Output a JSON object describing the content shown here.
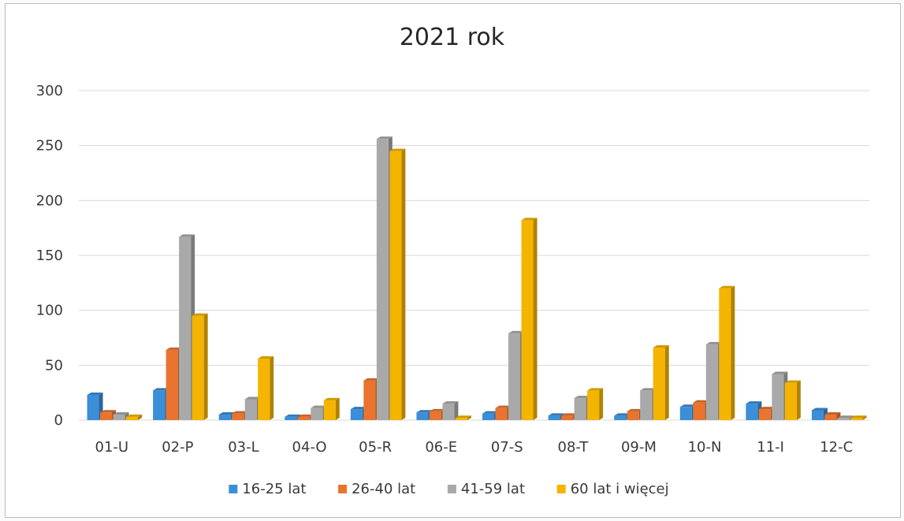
{
  "chart_data": {
    "type": "bar",
    "title": "2021 rok",
    "xlabel": "",
    "ylabel": "",
    "ylim": [
      0,
      300
    ],
    "yticks": [
      0,
      50,
      100,
      150,
      200,
      250,
      300
    ],
    "grid": true,
    "legend_position": "bottom",
    "categories": [
      "01-U",
      "02-P",
      "03-L",
      "04-O",
      "05-R",
      "06-E",
      "07-S",
      "08-T",
      "09-M",
      "10-N",
      "11-I",
      "12-C"
    ],
    "series": [
      {
        "name": "16-25 lat",
        "color": "#3b8ed8",
        "values": [
          23,
          27,
          5,
          3,
          10,
          7,
          6,
          4,
          4,
          12,
          15,
          9
        ]
      },
      {
        "name": "26-40 lat",
        "color": "#e8742f",
        "values": [
          7,
          64,
          6,
          3,
          36,
          8,
          11,
          4,
          8,
          16,
          10,
          5
        ]
      },
      {
        "name": "41-59 lat",
        "color": "#a9a9a9",
        "values": [
          5,
          167,
          19,
          11,
          256,
          15,
          79,
          20,
          27,
          69,
          42,
          2
        ]
      },
      {
        "name": "60 lat i więcej",
        "color": "#f5b400",
        "values": [
          3,
          95,
          56,
          18,
          245,
          2,
          182,
          27,
          66,
          120,
          34,
          2
        ]
      }
    ]
  }
}
